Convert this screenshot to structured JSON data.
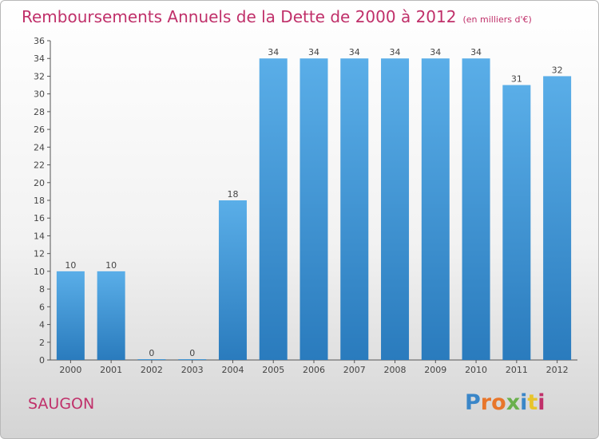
{
  "header": {
    "title": "Remboursements Annuels de la Dette de 2000 à 2012",
    "unit": "(en milliers d'€)"
  },
  "footer": {
    "city": "SAUGON",
    "logo": "Proxiti"
  },
  "colors": {
    "bar": "#3d94d8",
    "title": "#c0306a",
    "axis": "#444444",
    "grid": "#dddddd"
  },
  "chart_data": {
    "type": "bar",
    "title": "Remboursements Annuels de la Dette de 2000 à 2012",
    "xlabel": "",
    "ylabel": "",
    "categories": [
      "2000",
      "2001",
      "2002",
      "2003",
      "2004",
      "2005",
      "2006",
      "2007",
      "2008",
      "2009",
      "2010",
      "2011",
      "2012"
    ],
    "values": [
      10,
      10,
      0,
      0,
      18,
      34,
      34,
      34,
      34,
      34,
      34,
      31,
      32
    ],
    "ylim": [
      0,
      36
    ],
    "yticks": [
      0,
      2,
      4,
      6,
      8,
      10,
      12,
      14,
      16,
      18,
      20,
      22,
      24,
      26,
      28,
      30,
      32,
      34,
      36
    ],
    "grid": false,
    "data_labels": true
  }
}
